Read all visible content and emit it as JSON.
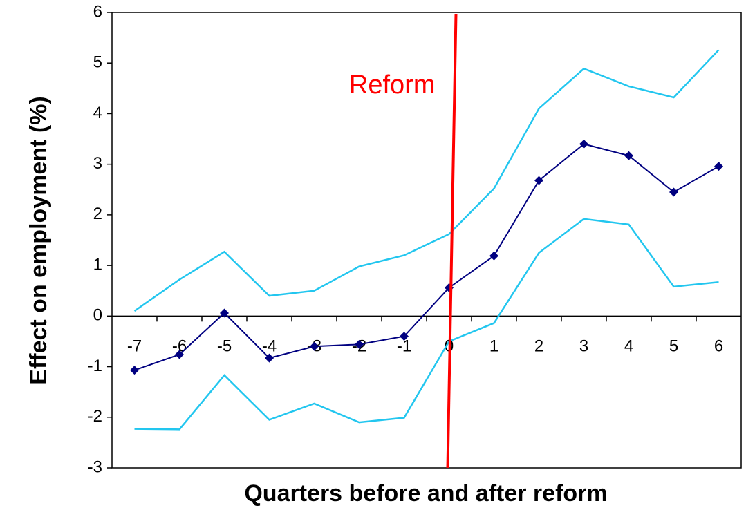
{
  "chart_data": {
    "type": "line",
    "x_label": "Quarters before and after reform",
    "y_label": "Effect on employment (%)",
    "x": [
      -7,
      -6,
      -5,
      -4,
      -3,
      -2,
      -1,
      0,
      1,
      2,
      3,
      4,
      5,
      6
    ],
    "xlim": [
      -7.5,
      6.5
    ],
    "xticks": [
      -7,
      -6,
      -5,
      -4,
      -3,
      -2,
      -1,
      0,
      1,
      2,
      3,
      4,
      5,
      6
    ],
    "ylim": [
      -3,
      6
    ],
    "yticks": [
      -3,
      -2,
      -1,
      0,
      1,
      2,
      3,
      4,
      5,
      6
    ],
    "grid": false,
    "series": [
      {
        "color": "#000080",
        "markers": true,
        "values": [
          -1.07,
          -0.76,
          0.06,
          -0.83,
          -0.6,
          -0.56,
          -0.4,
          0.56,
          1.19,
          2.68,
          3.4,
          3.17,
          2.45,
          2.96
        ]
      },
      {
        "color": "#22c6ef",
        "markers": false,
        "values": [
          0.1,
          0.72,
          1.27,
          0.4,
          0.5,
          0.98,
          1.2,
          1.62,
          2.52,
          4.1,
          4.89,
          4.54,
          4.32,
          5.26
        ]
      },
      {
        "color": "#22c6ef",
        "markers": false,
        "values": [
          -2.23,
          -2.24,
          -1.17,
          -2.05,
          -1.73,
          -2.1,
          -2.01,
          -0.5,
          -0.14,
          1.25,
          1.92,
          1.81,
          0.58,
          0.67
        ]
      }
    ],
    "annotations": [
      {
        "text": "Reform",
        "x": 0,
        "color": "#ff0000"
      }
    ]
  }
}
